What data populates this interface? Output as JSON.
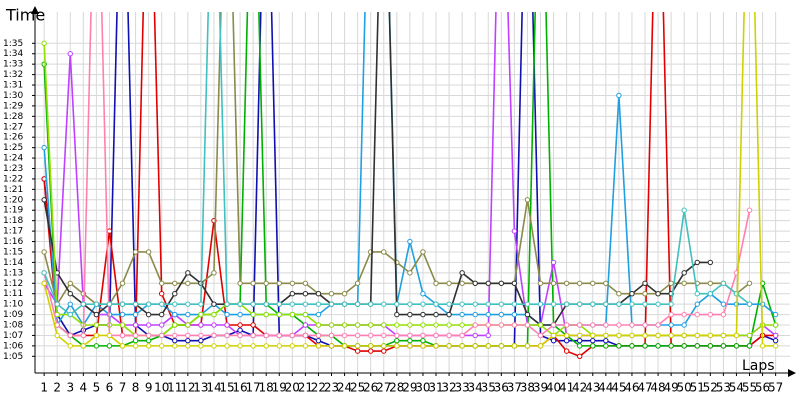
{
  "chart_data": {
    "type": "line",
    "ylabel": "Time",
    "xlabel": "Laps",
    "x": [
      1,
      2,
      3,
      4,
      5,
      6,
      7,
      8,
      9,
      10,
      11,
      12,
      13,
      14,
      15,
      16,
      17,
      18,
      19,
      20,
      21,
      22,
      23,
      24,
      25,
      26,
      27,
      28,
      29,
      30,
      31,
      32,
      33,
      34,
      35,
      36,
      37,
      38,
      39,
      40,
      41,
      42,
      43,
      44,
      45,
      46,
      47,
      48,
      49,
      50,
      51,
      52,
      53,
      54,
      55,
      56,
      57
    ],
    "xticks": [
      1,
      2,
      3,
      4,
      5,
      6,
      7,
      8,
      9,
      10,
      11,
      12,
      13,
      14,
      15,
      16,
      17,
      18,
      19,
      20,
      21,
      22,
      23,
      24,
      25,
      26,
      27,
      28,
      29,
      30,
      31,
      32,
      33,
      34,
      35,
      36,
      37,
      38,
      39,
      40,
      41,
      42,
      43,
      44,
      45,
      46,
      47,
      48,
      49,
      50,
      51,
      52,
      53,
      54,
      55,
      56,
      57
    ],
    "xlim": [
      0.3,
      58.1
    ],
    "ylim": [
      63.4,
      98
    ],
    "yticks": [
      {
        "value": 65,
        "label": "1:05"
      },
      {
        "value": 66,
        "label": "1:06"
      },
      {
        "value": 67,
        "label": "1:07"
      },
      {
        "value": 68,
        "label": "1:08"
      },
      {
        "value": 69,
        "label": "1:09"
      },
      {
        "value": 70,
        "label": "1:10"
      },
      {
        "value": 71,
        "label": "1:11"
      },
      {
        "value": 72,
        "label": "1:12"
      },
      {
        "value": 73,
        "label": "1:13"
      },
      {
        "value": 74,
        "label": "1:14"
      },
      {
        "value": 75,
        "label": "1:15"
      },
      {
        "value": 76,
        "label": "1:16"
      },
      {
        "value": 77,
        "label": "1:17"
      },
      {
        "value": 78,
        "label": "1:18"
      },
      {
        "value": 79,
        "label": "1:19"
      },
      {
        "value": 80,
        "label": "1:20"
      },
      {
        "value": 81,
        "label": "1:21"
      },
      {
        "value": 82,
        "label": "1:22"
      },
      {
        "value": 83,
        "label": "1:23"
      },
      {
        "value": 84,
        "label": "1:24"
      },
      {
        "value": 85,
        "label": "1:25"
      },
      {
        "value": 86,
        "label": "1:26"
      },
      {
        "value": 87,
        "label": "1:27"
      },
      {
        "value": 88,
        "label": "1:28"
      },
      {
        "value": 89,
        "label": "1:29"
      },
      {
        "value": 90,
        "label": "1:30"
      },
      {
        "value": 91,
        "label": "1:31"
      },
      {
        "value": 92,
        "label": "1:32"
      },
      {
        "value": 93,
        "label": "1:33"
      },
      {
        "value": 94,
        "label": "1:34"
      },
      {
        "value": 95,
        "label": "1:35"
      }
    ],
    "grid": true,
    "series": [
      {
        "color": "#1010b0",
        "values": [
          82,
          69,
          67,
          67.5,
          68,
          68,
          120,
          68,
          67,
          67,
          66.5,
          66.5,
          66.5,
          67,
          67,
          67.5,
          67,
          120,
          67,
          67,
          67,
          66.5,
          66,
          66,
          66,
          66,
          66,
          66,
          66,
          66,
          66,
          66,
          66,
          66,
          66,
          66,
          66,
          120,
          67,
          66.5,
          66.5,
          66.5,
          66.5,
          66.5,
          66,
          66,
          66,
          66,
          66,
          66,
          66,
          66,
          66,
          66,
          66,
          67,
          66.5
        ]
      },
      {
        "color": "#e00000",
        "values": [
          82,
          68,
          67,
          67,
          67,
          77,
          67,
          67,
          120,
          71,
          68,
          68,
          68,
          78,
          68,
          68,
          68,
          67,
          67,
          67,
          67,
          66,
          66,
          66,
          65.5,
          65.5,
          65.5,
          66,
          66,
          66,
          66,
          66,
          66,
          66,
          66,
          66,
          66,
          66,
          66,
          67,
          65.5,
          65,
          66,
          66,
          66,
          66,
          66,
          120,
          66,
          66,
          66,
          66,
          66,
          66,
          66,
          67,
          67
        ]
      },
      {
        "color": "#00b000",
        "values": [
          93,
          68,
          67,
          66,
          66,
          66,
          66,
          66.5,
          66.5,
          67,
          68,
          68,
          69,
          69,
          70,
          70,
          120,
          70,
          69,
          69,
          68,
          67,
          67,
          66,
          66,
          66,
          66,
          66.5,
          66.5,
          66.5,
          66,
          66,
          66,
          66,
          66,
          66,
          66,
          66,
          120,
          68,
          67,
          66,
          66,
          66,
          66,
          66,
          66,
          66,
          66,
          66,
          66,
          66,
          66,
          66,
          66,
          72,
          68
        ]
      },
      {
        "color": "#c040ff",
        "values": [
          72,
          70,
          94,
          70,
          69,
          69,
          68,
          68,
          68,
          68,
          69,
          68,
          68,
          68,
          68,
          67,
          67,
          67,
          67,
          67,
          68,
          68,
          68,
          68,
          68,
          68,
          68,
          67,
          67,
          67,
          67,
          67,
          67,
          67,
          67,
          120,
          77,
          68,
          68,
          74,
          67,
          67,
          67,
          67,
          67,
          67,
          67,
          67,
          67,
          67,
          67,
          67,
          67,
          67,
          67,
          68,
          67
        ]
      },
      {
        "color": "#20a0e0",
        "values": [
          85,
          68,
          70,
          68,
          70,
          69,
          69,
          69,
          70,
          70,
          69,
          69,
          69,
          70,
          69,
          69,
          69,
          69,
          69,
          69,
          69,
          69,
          70,
          70,
          70,
          120,
          120,
          70,
          76,
          71,
          70,
          69,
          69,
          69,
          69,
          69,
          69,
          69,
          68,
          68,
          68,
          68,
          68,
          68,
          90,
          68,
          68,
          68,
          68,
          68,
          70,
          71,
          70,
          70,
          70,
          70,
          69
        ]
      },
      {
        "color": "#8a8a4a",
        "values": [
          75,
          70,
          72,
          71,
          70,
          70,
          72,
          75,
          75,
          72,
          72,
          72,
          72,
          73,
          120,
          72,
          72,
          72,
          72,
          72,
          72,
          71,
          71,
          71,
          72,
          75,
          75,
          74,
          73,
          75,
          72,
          72,
          72,
          72,
          72,
          72,
          72,
          80,
          72,
          72,
          72,
          72,
          72,
          72,
          71,
          71,
          71,
          71,
          72,
          72,
          72,
          72,
          72,
          71,
          72,
          null,
          null
        ]
      },
      {
        "color": "#303030",
        "values": [
          80,
          73,
          71,
          70,
          69,
          70,
          70,
          70,
          69,
          69,
          71,
          73,
          72,
          70,
          70,
          70,
          70,
          70,
          70,
          71,
          71,
          71,
          70,
          70,
          70,
          70,
          120,
          69,
          69,
          69,
          69,
          69,
          73,
          72,
          72,
          72,
          72,
          69,
          68,
          68,
          70,
          70,
          70,
          70,
          70,
          71,
          72,
          71,
          71,
          73,
          74,
          74,
          null,
          null,
          null,
          null,
          null
        ]
      },
      {
        "color": "#90e000",
        "values": [
          95,
          69,
          69,
          68,
          68,
          68,
          68,
          67,
          67,
          67,
          68,
          68,
          69,
          69,
          70,
          70,
          69,
          69,
          69,
          69,
          69,
          68,
          68,
          68,
          68,
          68,
          68,
          68,
          68,
          68,
          68,
          68,
          68,
          68,
          68,
          68,
          68,
          68,
          68,
          67,
          68,
          68,
          67,
          67,
          67,
          67,
          67,
          67,
          67,
          67,
          67,
          67,
          67,
          67,
          67,
          68,
          68
        ]
      },
      {
        "color": "#ff80b0",
        "values": [
          73,
          68,
          67,
          67,
          120,
          67,
          67,
          67,
          67,
          67,
          67,
          67,
          67,
          67,
          67,
          67,
          67,
          67,
          67,
          67,
          67,
          67,
          67,
          67,
          67,
          67,
          67,
          67,
          67,
          67,
          67,
          67,
          67,
          68,
          68,
          68,
          68,
          68,
          67,
          68,
          68,
          68,
          68,
          68,
          68,
          68,
          68,
          68,
          69,
          69,
          69,
          69,
          69,
          73,
          79,
          null,
          null
        ]
      },
      {
        "color": "#40c0c0",
        "values": [
          73,
          70,
          69,
          70,
          70,
          70,
          70,
          70,
          70,
          70,
          70,
          70,
          70,
          120,
          70,
          70,
          70,
          70,
          70,
          70,
          70,
          70,
          70,
          70,
          70,
          70,
          70,
          70,
          70,
          70,
          70,
          70,
          70,
          70,
          70,
          70,
          70,
          70,
          70,
          70,
          70,
          70,
          70,
          70,
          70,
          70,
          70,
          70,
          70,
          79,
          71,
          71,
          72,
          71,
          70,
          null,
          null
        ]
      },
      {
        "color": "#d0d000",
        "values": [
          72,
          67,
          66,
          66,
          67,
          67,
          66,
          66,
          66,
          66,
          66,
          66,
          66,
          66,
          66,
          66,
          66,
          66,
          66,
          66,
          66,
          66,
          66,
          66,
          66,
          66,
          66,
          66,
          66,
          66,
          66,
          66,
          66,
          66,
          66,
          66,
          66,
          66,
          66,
          67,
          67,
          67,
          67,
          67,
          67,
          67,
          67,
          67,
          67,
          67,
          67,
          67,
          67,
          67,
          120,
          66,
          66
        ]
      }
    ]
  }
}
